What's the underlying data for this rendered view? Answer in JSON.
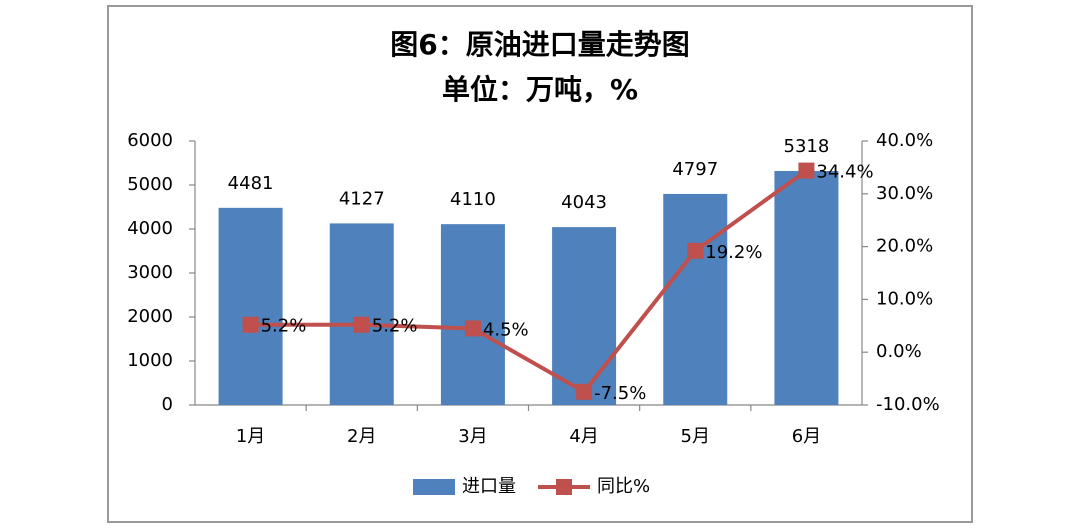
{
  "chart_data": {
    "type": "bar",
    "title": "图6：原油进口量走势图",
    "subtitle": "单位：万吨，%",
    "categories": [
      "1月",
      "2月",
      "3月",
      "4月",
      "5月",
      "6月"
    ],
    "series": [
      {
        "name": "进口量",
        "type": "bar",
        "color": "#4f81bd",
        "values": [
          4481,
          4127,
          4110,
          4043,
          4797,
          5318
        ]
      },
      {
        "name": "同比%",
        "type": "line",
        "axis": "y2",
        "color": "#c0504d",
        "values": [
          5.2,
          5.2,
          4.5,
          -7.5,
          19.2,
          34.4
        ],
        "value_labels": [
          "5.2%",
          "5.2%",
          "4.5%",
          "-7.5%",
          "19.2%",
          "34.4%"
        ]
      }
    ],
    "ylim": [
      0,
      6000
    ],
    "yticks": [
      0,
      1000,
      2000,
      3000,
      4000,
      5000,
      6000
    ],
    "y2lim": [
      -10,
      40
    ],
    "y2ticks": [
      {
        "value": -10,
        "label": "-10.0%"
      },
      {
        "value": 0,
        "label": "0.0%"
      },
      {
        "value": 10,
        "label": "10.0%"
      },
      {
        "value": 20,
        "label": "20.0%"
      },
      {
        "value": 30,
        "label": "30.0%"
      },
      {
        "value": 40,
        "label": "40.0%"
      }
    ],
    "grid": false,
    "legend": "bottom"
  }
}
